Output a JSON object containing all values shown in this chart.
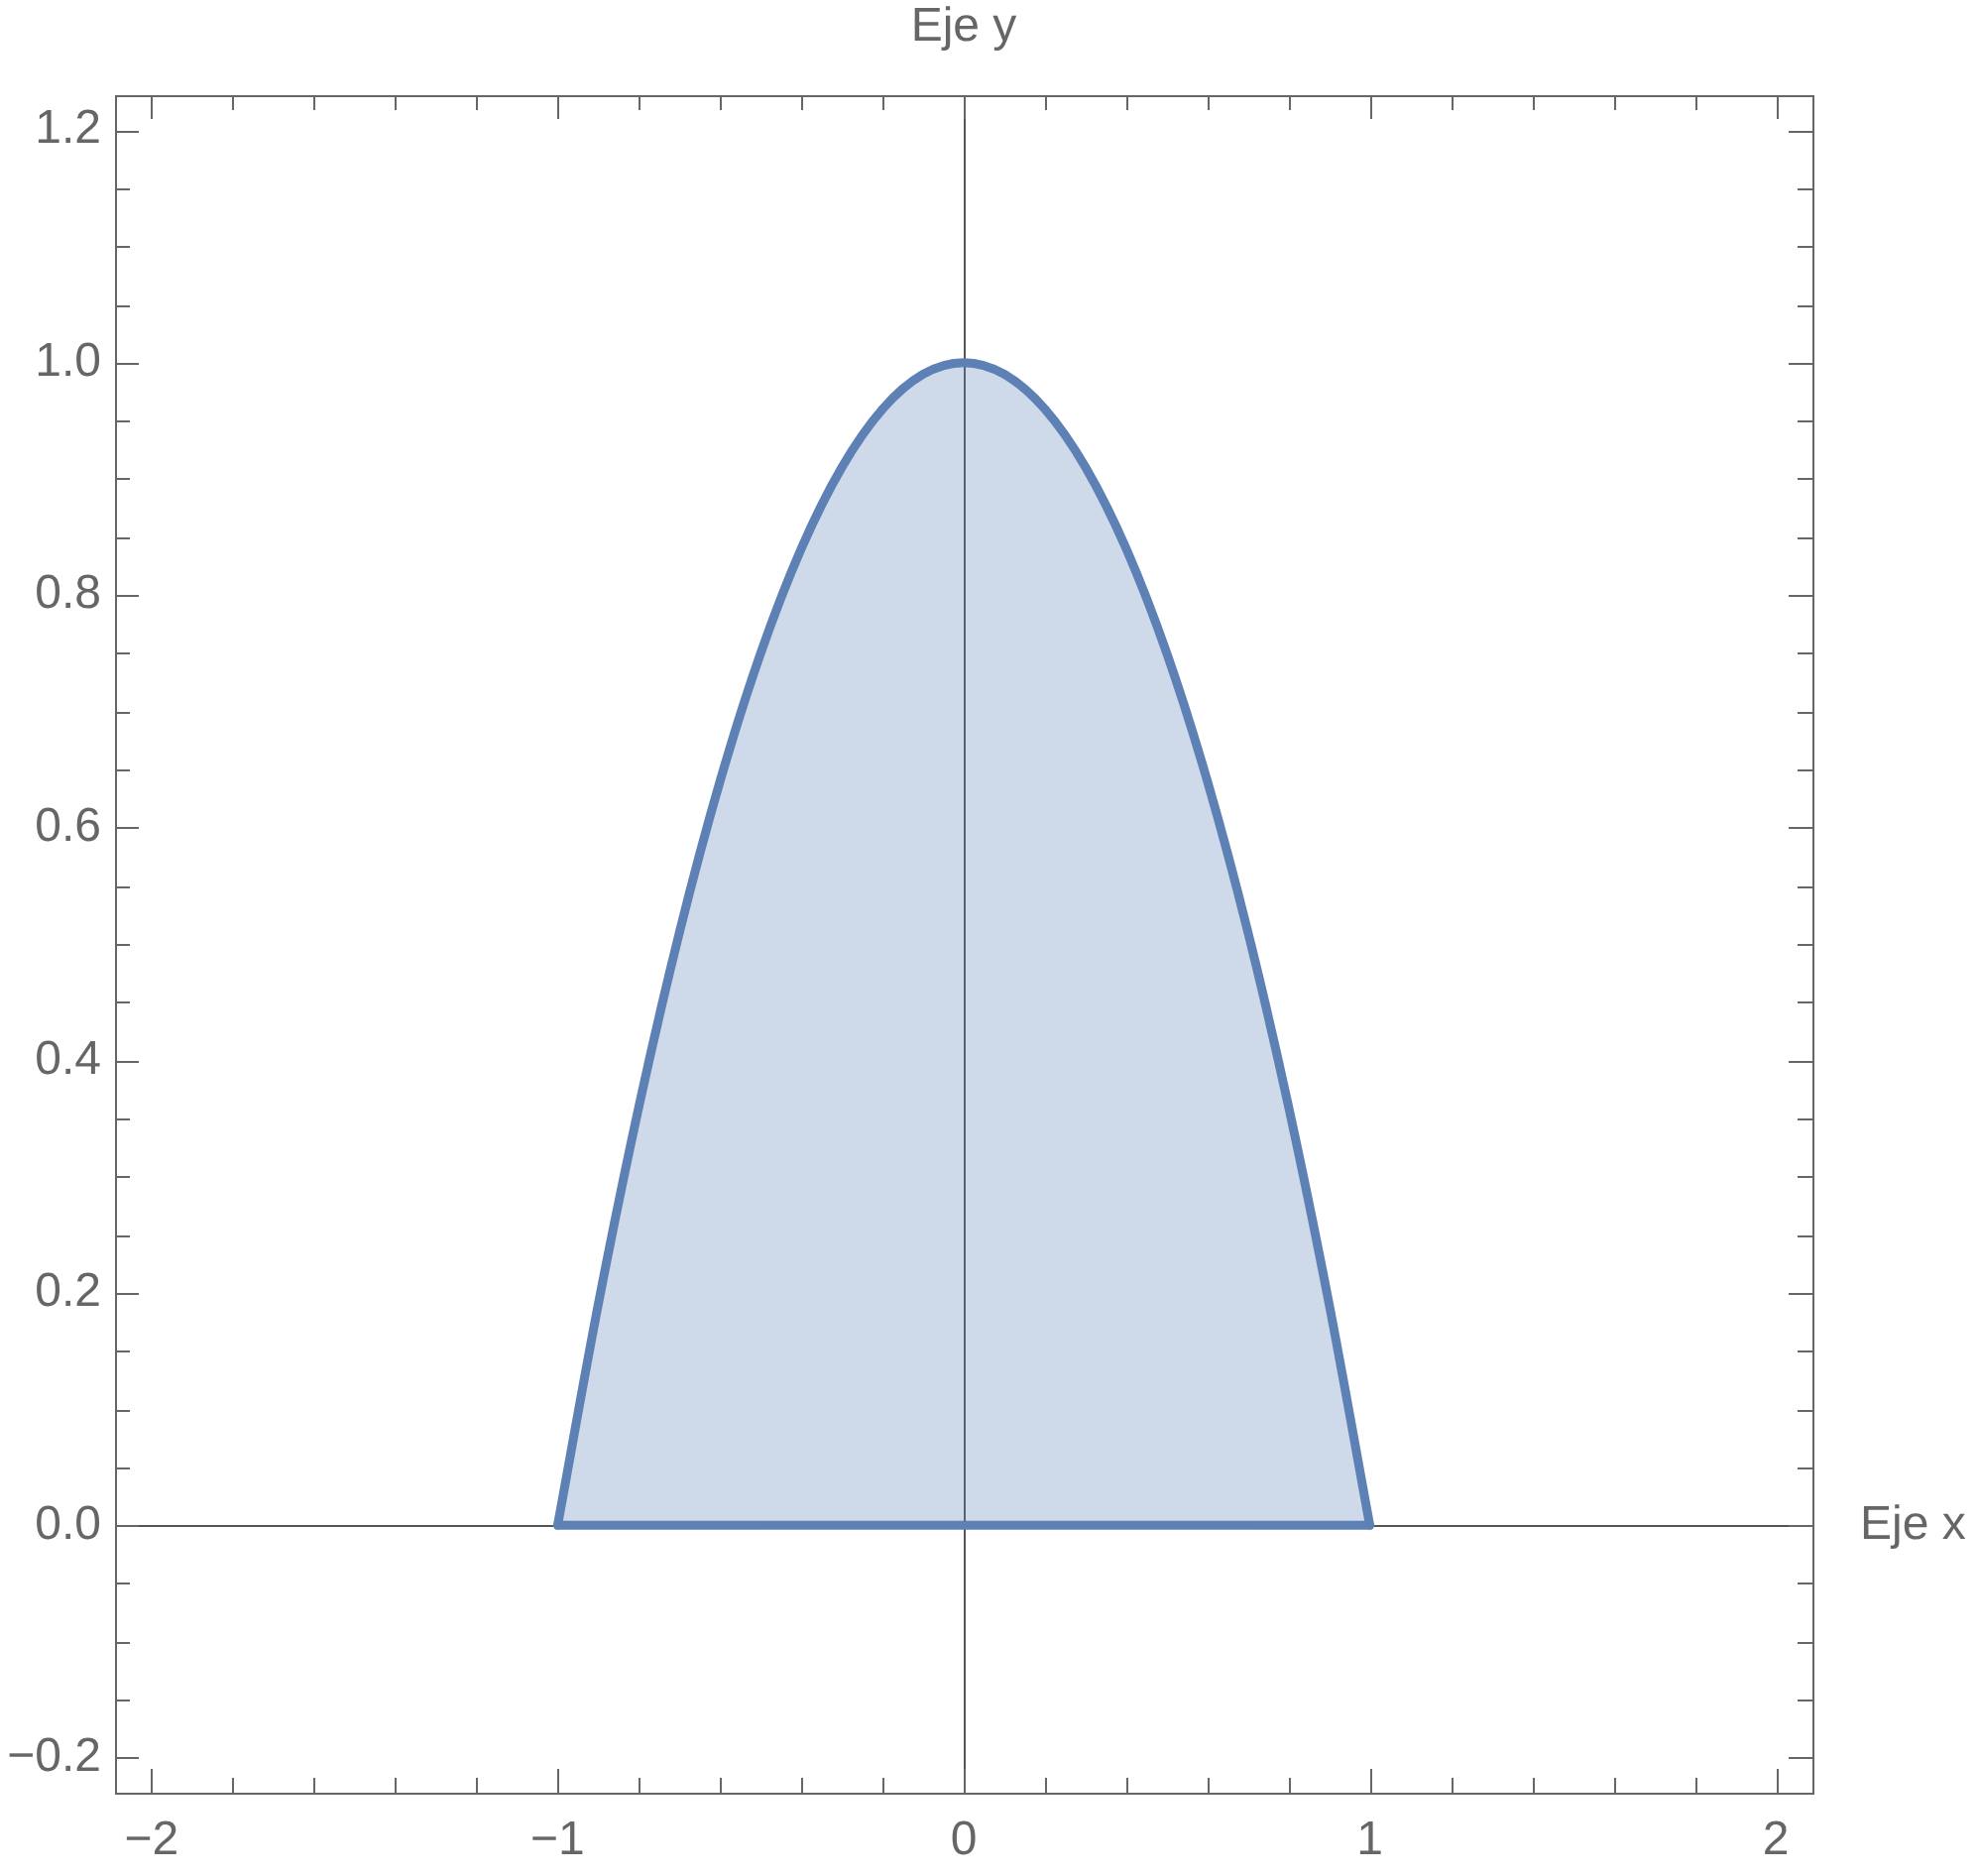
{
  "chart_data": {
    "type": "area",
    "xlabel": "Eje x",
    "ylabel": "Eje y",
    "x": [
      -1,
      -0.9,
      -0.8,
      -0.7,
      -0.6,
      -0.5,
      -0.4,
      -0.3,
      -0.2,
      -0.1,
      0,
      0.1,
      0.2,
      0.3,
      0.4,
      0.5,
      0.6,
      0.7,
      0.8,
      0.9,
      1
    ],
    "values": [
      0,
      0.19,
      0.36,
      0.51,
      0.64,
      0.75,
      0.84,
      0.91,
      0.96,
      0.99,
      1,
      0.99,
      0.96,
      0.91,
      0.84,
      0.75,
      0.64,
      0.51,
      0.36,
      0.19,
      0
    ],
    "color": "#5e81b5",
    "xlim": [
      -2.09,
      2.09
    ],
    "ylim": [
      -0.23,
      1.23
    ],
    "xticks": [
      {
        "value": -2,
        "label": "−2"
      },
      {
        "value": -1.8,
        "label": null
      },
      {
        "value": -1.6,
        "label": null
      },
      {
        "value": -1.4,
        "label": null
      },
      {
        "value": -1.2,
        "label": null
      },
      {
        "value": -1,
        "label": "−1"
      },
      {
        "value": -0.8,
        "label": null
      },
      {
        "value": -0.6,
        "label": null
      },
      {
        "value": -0.4,
        "label": null
      },
      {
        "value": -0.2,
        "label": null
      },
      0,
      {
        "value": 0.2,
        "label": null
      },
      {
        "value": 0.4,
        "label": null
      },
      {
        "value": 0.6,
        "label": null
      },
      {
        "value": 0.8,
        "label": null
      },
      1,
      {
        "value": 1.2,
        "label": null
      },
      {
        "value": 1.4,
        "label": null
      },
      {
        "value": 1.6,
        "label": null
      },
      {
        "value": 1.8,
        "label": null
      },
      2
    ],
    "yticks": [
      {
        "value": -0.2,
        "label": "−0.2"
      },
      {
        "value": -0.15,
        "label": null
      },
      {
        "value": -0.1,
        "label": null
      },
      {
        "value": -0.05,
        "label": null
      },
      {
        "value": 0,
        "label": "0.0"
      },
      {
        "value": 0.05,
        "label": null
      },
      {
        "value": 0.1,
        "label": null
      },
      {
        "value": 0.15,
        "label": null
      },
      0.2,
      {
        "value": 0.25,
        "label": null
      },
      {
        "value": 0.3,
        "label": null
      },
      {
        "value": 0.35,
        "label": null
      },
      0.4,
      {
        "value": 0.45,
        "label": null
      },
      {
        "value": 0.5,
        "label": null
      },
      {
        "value": 0.55,
        "label": null
      },
      0.6,
      {
        "value": 0.65,
        "label": null
      },
      {
        "value": 0.7,
        "label": null
      },
      {
        "value": 0.75,
        "label": null
      },
      0.8,
      {
        "value": 0.85,
        "label": null
      },
      {
        "value": 0.9,
        "label": null
      },
      {
        "value": 0.95,
        "label": null
      },
      {
        "value": 1,
        "label": "1.0"
      },
      {
        "value": 1.05,
        "label": null
      },
      {
        "value": 1.1,
        "label": null
      },
      {
        "value": 1.15,
        "label": null
      },
      1.2
    ]
  }
}
